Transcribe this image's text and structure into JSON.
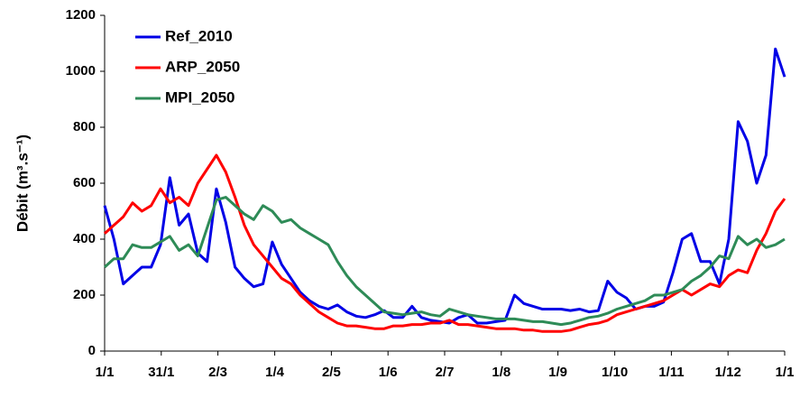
{
  "chart_data": {
    "type": "line",
    "ylabel": "Débit (m³.s⁻¹)",
    "x": [
      0,
      5,
      10,
      15,
      20,
      25,
      30,
      35,
      40,
      45,
      50,
      55,
      60,
      65,
      70,
      75,
      80,
      85,
      90,
      95,
      100,
      105,
      110,
      115,
      120,
      125,
      130,
      135,
      140,
      145,
      150,
      155,
      160,
      165,
      170,
      175,
      180,
      185,
      190,
      195,
      200,
      205,
      210,
      215,
      220,
      225,
      230,
      235,
      240,
      245,
      250,
      255,
      260,
      265,
      270,
      275,
      280,
      285,
      290,
      295,
      300,
      305,
      310,
      315,
      320,
      325,
      330,
      335,
      340,
      345,
      350,
      355,
      360,
      365
    ],
    "series": [
      {
        "name": "Ref_2010",
        "color": "#0000e6",
        "values": [
          520,
          400,
          240,
          270,
          300,
          300,
          380,
          620,
          450,
          490,
          350,
          320,
          580,
          460,
          300,
          260,
          230,
          240,
          390,
          310,
          260,
          210,
          180,
          160,
          150,
          165,
          140,
          125,
          120,
          130,
          145,
          120,
          120,
          160,
          120,
          110,
          105,
          100,
          120,
          130,
          100,
          100,
          105,
          110,
          200,
          170,
          160,
          150,
          150,
          150,
          145,
          150,
          140,
          145,
          250,
          210,
          190,
          150,
          160,
          160,
          175,
          280,
          400,
          420,
          320,
          320,
          240,
          400,
          820,
          750,
          600,
          700,
          1080,
          980
        ]
      },
      {
        "name": "ARP_2050",
        "color": "#ff0000",
        "values": [
          420,
          450,
          480,
          530,
          500,
          520,
          580,
          530,
          550,
          520,
          600,
          650,
          700,
          640,
          550,
          450,
          380,
          340,
          300,
          260,
          240,
          200,
          170,
          140,
          120,
          100,
          90,
          90,
          85,
          80,
          80,
          90,
          90,
          95,
          95,
          100,
          100,
          110,
          95,
          95,
          90,
          85,
          80,
          80,
          80,
          75,
          75,
          70,
          70,
          70,
          75,
          85,
          95,
          100,
          110,
          130,
          140,
          150,
          160,
          170,
          180,
          200,
          220,
          200,
          220,
          240,
          230,
          270,
          290,
          280,
          360,
          420,
          500,
          545
        ]
      },
      {
        "name": "MPI_2050",
        "color": "#2e8b57",
        "values": [
          300,
          330,
          330,
          380,
          370,
          370,
          390,
          410,
          360,
          380,
          340,
          440,
          540,
          550,
          520,
          490,
          470,
          520,
          500,
          460,
          470,
          440,
          420,
          400,
          380,
          320,
          270,
          230,
          200,
          170,
          140,
          135,
          130,
          135,
          140,
          130,
          125,
          150,
          140,
          130,
          125,
          120,
          115,
          115,
          115,
          110,
          105,
          105,
          100,
          95,
          100,
          110,
          120,
          125,
          135,
          150,
          160,
          170,
          180,
          200,
          200,
          210,
          220,
          250,
          270,
          300,
          340,
          330,
          410,
          380,
          400,
          370,
          380,
          400
        ]
      }
    ],
    "xlim": [
      0,
      365
    ],
    "xticks": [
      {
        "value": 0,
        "label": "1/1"
      },
      {
        "value": 30.4,
        "label": "31/1"
      },
      {
        "value": 60.8,
        "label": "2/3"
      },
      {
        "value": 91.3,
        "label": "1/4"
      },
      {
        "value": 121.7,
        "label": "2/5"
      },
      {
        "value": 152.1,
        "label": "1/6"
      },
      {
        "value": 182.5,
        "label": "2/7"
      },
      {
        "value": 212.9,
        "label": "1/8"
      },
      {
        "value": 243.3,
        "label": "1/9"
      },
      {
        "value": 273.8,
        "label": "1/10"
      },
      {
        "value": 304.2,
        "label": "1/11"
      },
      {
        "value": 334.6,
        "label": "1/12"
      },
      {
        "value": 365,
        "label": "1/1"
      }
    ],
    "ylim": [
      0,
      1200
    ],
    "yticks": [
      0,
      200,
      400,
      600,
      800,
      1000,
      1200
    ],
    "legend": "upper-left"
  }
}
